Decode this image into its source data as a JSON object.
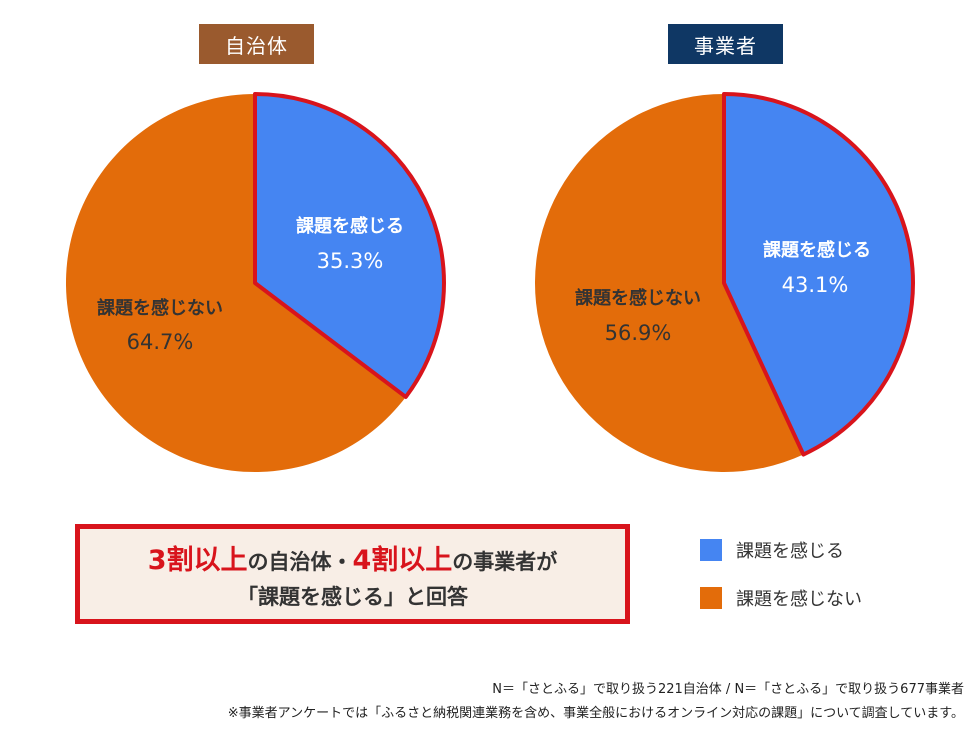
{
  "colors": {
    "feel": "#4585f2",
    "not_feel": "#e36c0a",
    "highlight": "#d8141c"
  },
  "chart_data": [
    {
      "type": "pie",
      "title": "自治体",
      "title_color": "#9a5a2e",
      "slices": [
        {
          "label": "課題を感じる",
          "value": 35.3,
          "display": "35.3%"
        },
        {
          "label": "課題を感じない",
          "value": 64.7,
          "display": "64.7%"
        }
      ]
    },
    {
      "type": "pie",
      "title": "事業者",
      "title_color": "#0f3764",
      "slices": [
        {
          "label": "課題を感じる",
          "value": 43.1,
          "display": "43.1%"
        },
        {
          "label": "課題を感じない",
          "value": 56.9,
          "display": "56.9%"
        }
      ]
    }
  ],
  "callout": {
    "part1_red": "3割以上",
    "part2": "の自治体・",
    "part3_red": "4割以上",
    "part4": "の事業者が",
    "line2": "「課題を感じる」と回答"
  },
  "legend": [
    {
      "label": "課題を感じる",
      "color": "#4585f2"
    },
    {
      "label": "課題を感じない",
      "color": "#e36c0a"
    }
  ],
  "footnotes": {
    "n": "N＝「さとふる」で取り扱う221自治体 / N＝「さとふる」で取り扱う677事業者",
    "note": "※事業者アンケートでは「ふるさと納税関連業務を含め、事業全般におけるオンライン対応の課題」について調査しています。"
  }
}
